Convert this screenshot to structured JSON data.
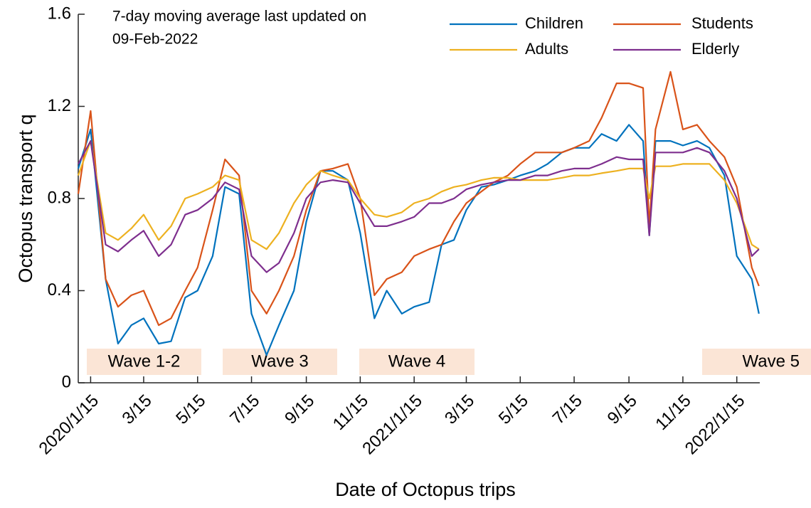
{
  "chart_data": {
    "type": "line",
    "x_label": "Date of Octopus trips",
    "y_label": "Octopus transport q",
    "note": [
      "7-day moving average last updated on",
      "09-Feb-2022"
    ],
    "annotations": [
      "Wave 1-2",
      "Wave 3",
      "Wave 4",
      "Wave 5"
    ],
    "x": [
      "2020-01-01",
      "2020-01-15",
      "2020-02-01",
      "2020-02-15",
      "2020-03-01",
      "2020-03-15",
      "2020-04-01",
      "2020-04-15",
      "2020-05-01",
      "2020-05-15",
      "2020-06-01",
      "2020-06-15",
      "2020-07-01",
      "2020-07-15",
      "2020-08-01",
      "2020-08-15",
      "2020-09-01",
      "2020-09-15",
      "2020-10-01",
      "2020-10-15",
      "2020-11-01",
      "2020-11-15",
      "2020-12-01",
      "2020-12-15",
      "2021-01-01",
      "2021-01-15",
      "2021-02-01",
      "2021-02-15",
      "2021-03-01",
      "2021-03-15",
      "2021-04-01",
      "2021-04-15",
      "2021-05-01",
      "2021-05-15",
      "2021-06-01",
      "2021-06-15",
      "2021-07-01",
      "2021-07-15",
      "2021-08-01",
      "2021-08-15",
      "2021-09-01",
      "2021-09-15",
      "2021-10-01",
      "2021-10-08",
      "2021-10-15",
      "2021-11-01",
      "2021-11-15",
      "2021-12-01",
      "2021-12-15",
      "2022-01-01",
      "2022-01-15",
      "2022-02-01",
      "2022-02-09"
    ],
    "series": [
      {
        "name": "Children",
        "color": "#0072BD",
        "values": [
          0.93,
          1.1,
          0.45,
          0.17,
          0.25,
          0.28,
          0.17,
          0.18,
          0.37,
          0.4,
          0.55,
          0.85,
          0.82,
          0.3,
          0.12,
          0.25,
          0.4,
          0.7,
          0.92,
          0.92,
          0.88,
          0.65,
          0.28,
          0.4,
          0.3,
          0.33,
          0.35,
          0.6,
          0.62,
          0.75,
          0.85,
          0.86,
          0.88,
          0.9,
          0.92,
          0.95,
          1.0,
          1.02,
          1.02,
          1.08,
          1.05,
          1.12,
          1.05,
          0.64,
          1.05,
          1.05,
          1.03,
          1.05,
          1.02,
          0.9,
          0.55,
          0.45,
          0.3
        ]
      },
      {
        "name": "Students",
        "color": "#D95319",
        "values": [
          0.82,
          1.18,
          0.45,
          0.33,
          0.38,
          0.4,
          0.25,
          0.28,
          0.4,
          0.5,
          0.75,
          0.97,
          0.9,
          0.4,
          0.3,
          0.4,
          0.55,
          0.75,
          0.92,
          0.93,
          0.95,
          0.8,
          0.38,
          0.45,
          0.48,
          0.55,
          0.58,
          0.6,
          0.7,
          0.78,
          0.83,
          0.87,
          0.9,
          0.95,
          1.0,
          1.0,
          1.0,
          1.02,
          1.05,
          1.15,
          1.3,
          1.3,
          1.28,
          0.68,
          1.1,
          1.35,
          1.1,
          1.12,
          1.05,
          0.98,
          0.85,
          0.5,
          0.42
        ]
      },
      {
        "name": "Adults",
        "color": "#EDB120",
        "values": [
          0.9,
          1.05,
          0.65,
          0.62,
          0.67,
          0.73,
          0.62,
          0.68,
          0.8,
          0.82,
          0.85,
          0.9,
          0.88,
          0.62,
          0.58,
          0.65,
          0.78,
          0.86,
          0.92,
          0.9,
          0.88,
          0.8,
          0.73,
          0.72,
          0.74,
          0.78,
          0.8,
          0.83,
          0.85,
          0.86,
          0.88,
          0.89,
          0.89,
          0.88,
          0.88,
          0.88,
          0.89,
          0.9,
          0.9,
          0.91,
          0.92,
          0.93,
          0.93,
          0.8,
          0.94,
          0.94,
          0.95,
          0.95,
          0.95,
          0.88,
          0.78,
          0.6,
          0.58
        ]
      },
      {
        "name": "Elderly",
        "color": "#7E2F8E",
        "values": [
          0.95,
          1.05,
          0.6,
          0.57,
          0.62,
          0.66,
          0.55,
          0.6,
          0.73,
          0.75,
          0.8,
          0.87,
          0.84,
          0.55,
          0.48,
          0.52,
          0.65,
          0.8,
          0.87,
          0.88,
          0.87,
          0.78,
          0.68,
          0.68,
          0.7,
          0.72,
          0.78,
          0.78,
          0.8,
          0.84,
          0.86,
          0.87,
          0.88,
          0.88,
          0.9,
          0.9,
          0.92,
          0.93,
          0.93,
          0.95,
          0.98,
          0.97,
          0.97,
          0.64,
          1.0,
          1.0,
          1.0,
          1.02,
          1.0,
          0.92,
          0.8,
          0.55,
          0.58
        ]
      }
    ],
    "xlim": [
      "2020-01-01",
      "2022-02-10"
    ],
    "xticks": [
      {
        "value": "2020-01-15",
        "label": "2020/1/15"
      },
      {
        "value": "2020-03-15",
        "label": "3/15"
      },
      {
        "value": "2020-05-15",
        "label": "5/15"
      },
      {
        "value": "2020-07-15",
        "label": "7/15"
      },
      {
        "value": "2020-09-15",
        "label": "9/15"
      },
      {
        "value": "2020-11-15",
        "label": "11/15"
      },
      {
        "value": "2021-01-15",
        "label": "2021/1/15"
      },
      {
        "value": "2021-03-15",
        "label": "3/15"
      },
      {
        "value": "2021-05-15",
        "label": "5/15"
      },
      {
        "value": "2021-07-15",
        "label": "7/15"
      },
      {
        "value": "2021-09-15",
        "label": "9/15"
      },
      {
        "value": "2021-11-15",
        "label": "11/15"
      },
      {
        "value": "2022-01-15",
        "label": "2022/1/15"
      }
    ],
    "ylim": [
      0,
      1.6
    ],
    "yticks": [
      0,
      0.4,
      0.8,
      1.2,
      1.6
    ],
    "grid": false,
    "legend": "upper right"
  }
}
